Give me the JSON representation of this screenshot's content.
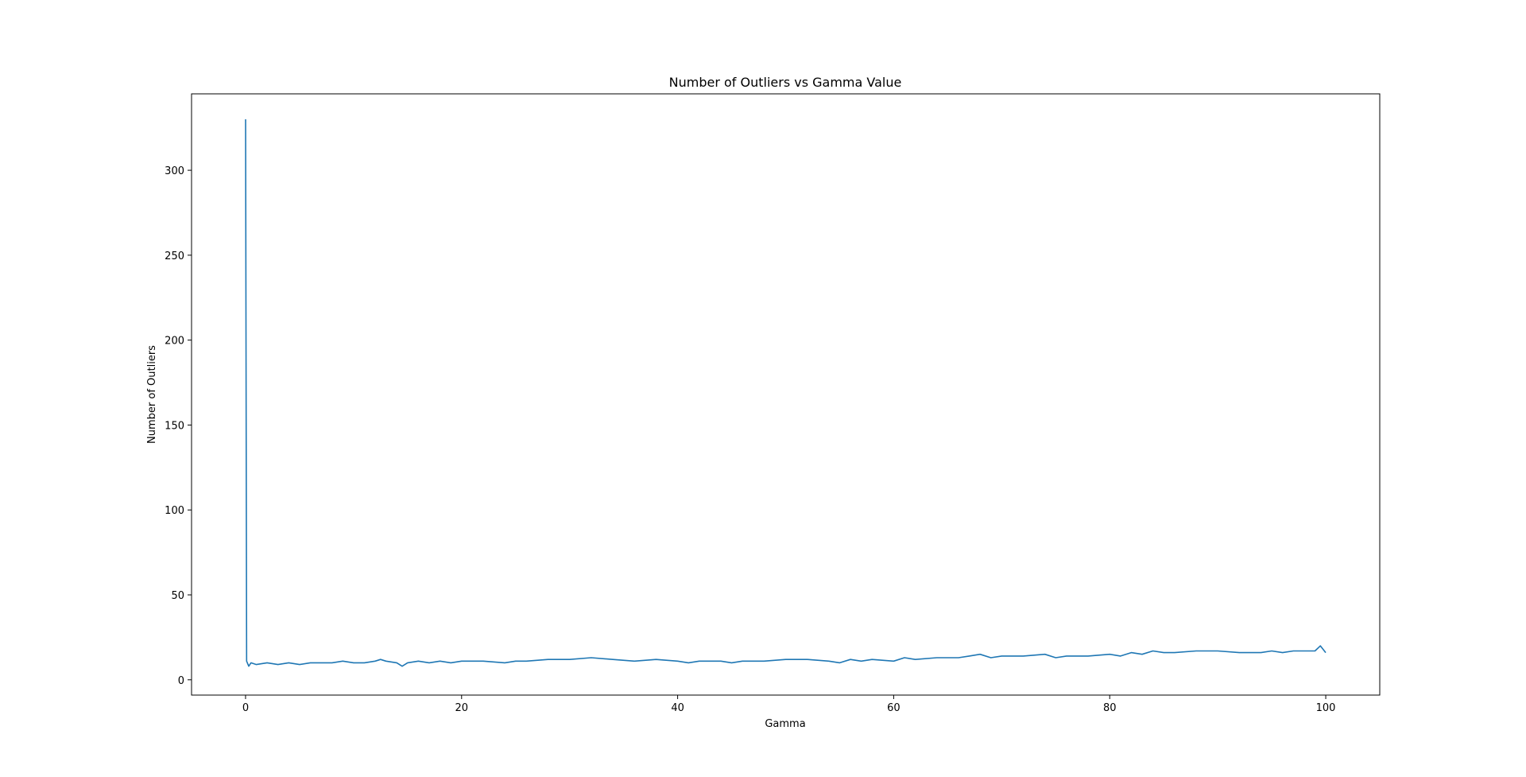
{
  "chart_data": {
    "type": "line",
    "title": "Number of Outliers vs Gamma Value",
    "xlabel": "Gamma",
    "ylabel": "Number of Outliers",
    "xlim": [
      -5,
      105
    ],
    "ylim": [
      -9,
      345
    ],
    "xticks": [
      0,
      20,
      40,
      60,
      80,
      100
    ],
    "yticks": [
      0,
      50,
      100,
      150,
      200,
      250,
      300
    ],
    "xtick_labels": [
      "0",
      "20",
      "40",
      "60",
      "80",
      "100"
    ],
    "ytick_labels": [
      "0",
      "50",
      "100",
      "150",
      "200",
      "250",
      "300"
    ],
    "grid": false,
    "colors": {
      "line": "#1f77b4",
      "axes": "#000000",
      "background": "#ffffff"
    },
    "series": [
      {
        "x": [
          0.001,
          0.1,
          0.3,
          0.5,
          1,
          2,
          3,
          4,
          5,
          6,
          7,
          8,
          9,
          10,
          11,
          12,
          12.5,
          13,
          14,
          14.5,
          15,
          16,
          17,
          18,
          19,
          20,
          22,
          24,
          25,
          26,
          28,
          30,
          32,
          34,
          36,
          38,
          40,
          41,
          42,
          44,
          45,
          46,
          48,
          50,
          52,
          54,
          55,
          56,
          57,
          58,
          60,
          61,
          62,
          64,
          66,
          67,
          68,
          69,
          70,
          72,
          74,
          75,
          76,
          78,
          80,
          81,
          82,
          83,
          84,
          85,
          86,
          88,
          90,
          92,
          94,
          95,
          96,
          97,
          98,
          99,
          99.5,
          100
        ],
        "y": [
          330,
          11,
          8,
          10,
          9,
          10,
          9,
          10,
          9,
          10,
          10,
          10,
          11,
          10,
          10,
          11,
          12,
          11,
          10,
          8,
          10,
          11,
          10,
          11,
          10,
          11,
          11,
          10,
          11,
          11,
          12,
          12,
          13,
          12,
          11,
          12,
          11,
          10,
          11,
          11,
          10,
          11,
          11,
          12,
          12,
          11,
          10,
          12,
          11,
          12,
          11,
          13,
          12,
          13,
          13,
          14,
          15,
          13,
          14,
          14,
          15,
          13,
          14,
          14,
          15,
          14,
          16,
          15,
          17,
          16,
          16,
          17,
          17,
          16,
          16,
          17,
          16,
          17,
          17,
          17,
          20,
          16
        ]
      }
    ]
  }
}
